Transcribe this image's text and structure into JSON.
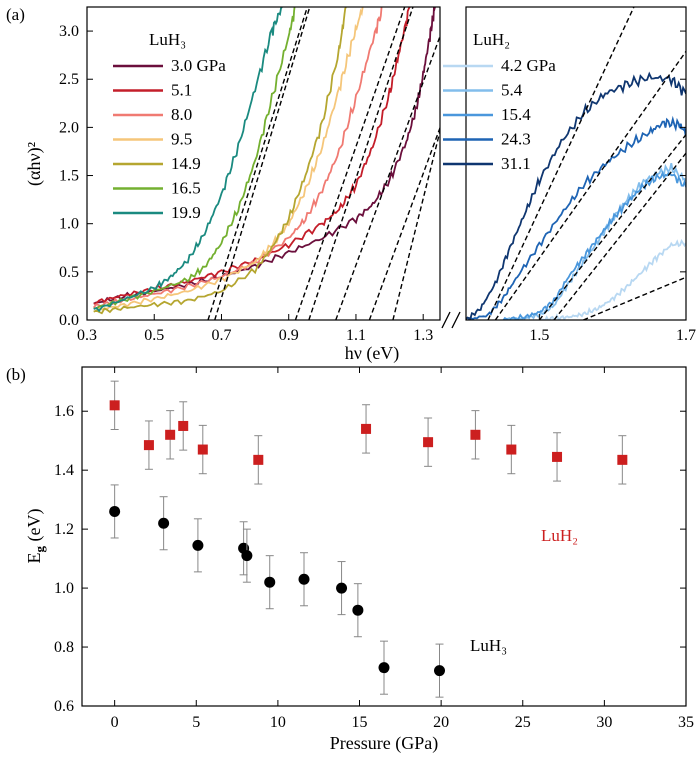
{
  "chart_data": [
    {
      "panel": "(a)",
      "type": "line",
      "xlabel": "hν (eV)",
      "ylabel": "(αhν)²",
      "ylim": [
        0,
        3.25
      ],
      "yticks": [
        "0.0",
        "0.5",
        "1.0",
        "1.5",
        "2.0",
        "2.5",
        "3.0"
      ],
      "segments": [
        {
          "xlim": [
            0.3,
            1.35
          ],
          "xticks": [
            "0.3",
            "0.5",
            "0.7",
            "0.9",
            "1.1",
            "1.3"
          ],
          "legend_title": "LuH₃",
          "series": [
            {
              "name": "3.0 GPa",
              "color": "#6b0f3c",
              "onset": 1.21,
              "x": [
                0.32,
                0.4,
                0.5,
                0.6,
                0.7,
                0.8,
                0.9,
                1.0,
                1.1,
                1.15,
                1.2,
                1.25,
                1.28,
                1.3,
                1.32,
                1.335
              ],
              "y": [
                0.17,
                0.24,
                0.3,
                0.37,
                0.45,
                0.56,
                0.7,
                0.85,
                1.05,
                1.2,
                1.45,
                1.85,
                2.2,
                2.55,
                2.95,
                3.25
              ]
            },
            {
              "name": "5.1",
              "color": "#c41e2a",
              "onset": 1.14,
              "x": [
                0.32,
                0.4,
                0.5,
                0.6,
                0.7,
                0.8,
                0.9,
                1.0,
                1.05,
                1.1,
                1.15,
                1.2,
                1.23,
                1.26
              ],
              "y": [
                0.18,
                0.25,
                0.32,
                0.4,
                0.5,
                0.62,
                0.78,
                1.0,
                1.15,
                1.4,
                1.8,
                2.35,
                2.8,
                3.25
              ]
            },
            {
              "name": "8.0",
              "color": "#f07a72",
              "onset": 1.04,
              "x": [
                0.32,
                0.4,
                0.5,
                0.6,
                0.7,
                0.8,
                0.9,
                0.95,
                1.0,
                1.05,
                1.1,
                1.15,
                1.18
              ],
              "y": [
                0.14,
                0.2,
                0.27,
                0.35,
                0.45,
                0.6,
                0.85,
                1.05,
                1.35,
                1.75,
                2.3,
                2.9,
                3.25
              ]
            },
            {
              "name": "9.5",
              "color": "#f5c67a",
              "onset": 0.96,
              "x": [
                0.32,
                0.4,
                0.5,
                0.6,
                0.7,
                0.8,
                0.85,
                0.9,
                0.95,
                1.0,
                1.05,
                1.09,
                1.12
              ],
              "y": [
                0.1,
                0.15,
                0.22,
                0.3,
                0.42,
                0.6,
                0.78,
                1.0,
                1.35,
                1.8,
                2.4,
                2.9,
                3.25
              ]
            },
            {
              "name": "14.9",
              "color": "#b5a630",
              "onset": 0.92,
              "x": [
                0.32,
                0.4,
                0.5,
                0.6,
                0.7,
                0.8,
                0.85,
                0.9,
                0.95,
                1.0,
                1.05,
                1.07
              ],
              "y": [
                0.08,
                0.12,
                0.16,
                0.2,
                0.3,
                0.52,
                0.75,
                1.05,
                1.5,
                2.05,
                2.8,
                3.25
              ]
            },
            {
              "name": "16.5",
              "color": "#74b030",
              "onset": 0.68,
              "x": [
                0.32,
                0.4,
                0.5,
                0.6,
                0.65,
                0.7,
                0.75,
                0.8,
                0.85,
                0.9,
                0.92
              ],
              "y": [
                0.12,
                0.2,
                0.3,
                0.42,
                0.55,
                0.8,
                1.15,
                1.65,
                2.3,
                2.95,
                3.25
              ]
            },
            {
              "name": "19.9",
              "color": "#1a8a80",
              "onset": 0.66,
              "x": [
                0.32,
                0.4,
                0.5,
                0.55,
                0.6,
                0.65,
                0.7,
                0.75,
                0.8,
                0.85,
                0.88
              ],
              "y": [
                0.1,
                0.2,
                0.33,
                0.45,
                0.62,
                0.9,
                1.3,
                1.8,
                2.4,
                3.0,
                3.25
              ]
            }
          ]
        },
        {
          "xlim": [
            1.4,
            1.7
          ],
          "xticks": [
            "1.5",
            "1.7"
          ],
          "legend_title": "LuH₂",
          "series": [
            {
              "name": "4.2 GPa",
              "color": "#b8d8f2",
              "onset": 1.56,
              "x": [
                1.5,
                1.52,
                1.54,
                1.56,
                1.58,
                1.6,
                1.62,
                1.64,
                1.66,
                1.68,
                1.7
              ],
              "y": [
                0.0,
                0.02,
                0.03,
                0.06,
                0.12,
                0.22,
                0.35,
                0.5,
                0.65,
                0.78,
                0.8
              ]
            },
            {
              "name": "5.4",
              "color": "#82bdec",
              "onset": 1.52,
              "x": [
                1.45,
                1.48,
                1.5,
                1.52,
                1.54,
                1.56,
                1.58,
                1.6,
                1.62,
                1.64,
                1.66,
                1.68,
                1.7
              ],
              "y": [
                0.0,
                0.02,
                0.05,
                0.15,
                0.38,
                0.6,
                0.82,
                1.05,
                1.25,
                1.42,
                1.52,
                1.58,
                1.45
              ]
            },
            {
              "name": "15.4",
              "color": "#4a97dc",
              "onset": 1.5,
              "x": [
                1.45,
                1.48,
                1.5,
                1.52,
                1.54,
                1.56,
                1.58,
                1.6,
                1.62,
                1.64,
                1.66,
                1.68,
                1.7
              ],
              "y": [
                0.0,
                0.03,
                0.08,
                0.2,
                0.45,
                0.65,
                0.85,
                1.05,
                1.22,
                1.38,
                1.48,
                1.52,
                1.38
              ]
            },
            {
              "name": "24.3",
              "color": "#1e64b4",
              "onset": 1.44,
              "x": [
                1.4,
                1.43,
                1.45,
                1.47,
                1.5,
                1.53,
                1.56,
                1.59,
                1.62,
                1.65,
                1.67,
                1.69,
                1.7
              ],
              "y": [
                0.0,
                0.05,
                0.22,
                0.45,
                0.78,
                1.1,
                1.4,
                1.62,
                1.8,
                1.95,
                2.05,
                2.03,
                1.95
              ]
            },
            {
              "name": "31.1",
              "color": "#0f3670",
              "onset": 1.43,
              "x": [
                1.4,
                1.42,
                1.44,
                1.46,
                1.48,
                1.5,
                1.53,
                1.56,
                1.59,
                1.62,
                1.65,
                1.68,
                1.7
              ],
              "y": [
                0.0,
                0.12,
                0.38,
                0.75,
                1.1,
                1.45,
                1.85,
                2.15,
                2.35,
                2.45,
                2.52,
                2.5,
                2.35
              ]
            }
          ]
        }
      ]
    },
    {
      "panel": "(b)",
      "type": "scatter",
      "xlabel": "Pressure (GPa)",
      "ylabel": "Eg (eV)",
      "ylabel_main": "E",
      "ylabel_sub": "g",
      "ylabel_unit": " (eV)",
      "xlim": [
        -2,
        35
      ],
      "ylim": [
        0.6,
        1.75
      ],
      "xticks": [
        "0",
        "5",
        "10",
        "15",
        "20",
        "25",
        "30",
        "35"
      ],
      "yticks": [
        "0.6",
        "0.8",
        "1.0",
        "1.2",
        "1.4",
        "1.6"
      ],
      "series": [
        {
          "name": "LuH₂",
          "label": "LuH₂",
          "color": "#cc1f1f",
          "marker": "square",
          "x": [
            0,
            2.1,
            3.4,
            4.2,
            5.4,
            8.8,
            15.4,
            19.2,
            22.1,
            24.3,
            27.1,
            31.1
          ],
          "y": [
            1.62,
            1.485,
            1.52,
            1.55,
            1.47,
            1.435,
            1.54,
            1.495,
            1.52,
            1.47,
            1.445,
            1.435
          ],
          "err": 0.082
        },
        {
          "name": "LuH₃",
          "label": "LuH₃",
          "color": "#000000",
          "marker": "circle",
          "x": [
            0,
            3.0,
            5.1,
            7.9,
            8.1,
            9.5,
            11.6,
            13.9,
            14.9,
            16.5,
            19.9
          ],
          "y": [
            1.26,
            1.22,
            1.145,
            1.135,
            1.11,
            1.02,
            1.03,
            1.0,
            0.925,
            0.73,
            0.72
          ],
          "err": 0.09
        }
      ]
    }
  ]
}
